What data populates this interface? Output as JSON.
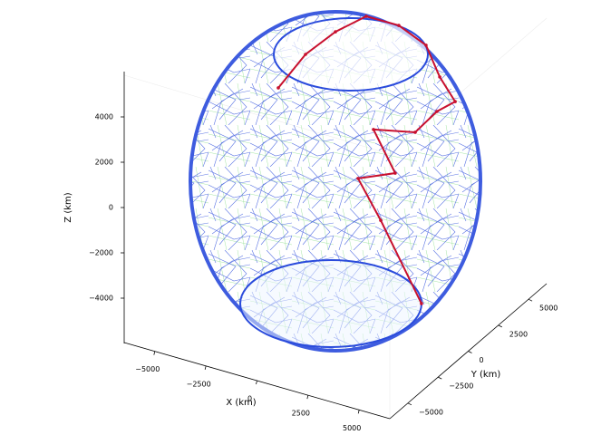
{
  "chart_data": {
    "type": "line3d",
    "xlabel": "X (km)",
    "ylabel": "Y (km)",
    "zlabel": "Z (km)",
    "xlim": [
      -6500,
      6500
    ],
    "ylim": [
      -6500,
      6500
    ],
    "zlim": [
      -6000,
      6000
    ],
    "xticks": [
      {
        "value": -5000,
        "label": "−5000"
      },
      {
        "value": -2500,
        "label": "−2500"
      },
      0,
      2500,
      5000
    ],
    "yticks": [
      {
        "value": -5000,
        "label": "−5000"
      },
      {
        "value": -2500,
        "label": "−2500"
      },
      0,
      2500,
      5000
    ],
    "zticks": [
      {
        "value": -4000,
        "label": "−4000"
      },
      {
        "value": -2000,
        "label": "−2000"
      },
      0,
      2000,
      4000
    ],
    "series": [
      {
        "color": "#c8102e",
        "x": [
          -3000,
          -1570,
          0,
          1620,
          3330,
          4760,
          5480,
          6290,
          5330,
          4190,
          2000,
          3140,
          1190,
          2380,
          4520
        ],
        "y": [
          0,
          0,
          0,
          0,
          0,
          0,
          0,
          0,
          0,
          0,
          0,
          0,
          0,
          0,
          0
        ],
        "z": [
          3680,
          5000,
          5890,
          6500,
          6140,
          5360,
          4110,
          3140,
          2750,
          1930,
          2040,
          320,
          110,
          -1540,
          -4820
        ]
      }
    ]
  }
}
